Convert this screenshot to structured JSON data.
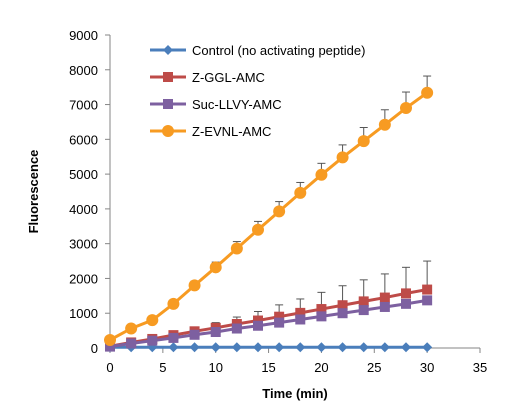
{
  "chart_data": {
    "type": "line",
    "title": "",
    "xlabel": "Time (min)",
    "ylabel": "Fluorescence",
    "xlim": [
      0,
      35
    ],
    "ylim": [
      0,
      9000
    ],
    "x_ticks": [
      0,
      5,
      10,
      15,
      20,
      25,
      30,
      35
    ],
    "y_ticks": [
      0,
      1000,
      2000,
      3000,
      4000,
      5000,
      6000,
      7000,
      8000,
      9000
    ],
    "grid": false,
    "legend_position": "top-left",
    "x": [
      0,
      2,
      4,
      6,
      8,
      10,
      12,
      14,
      16,
      18,
      20,
      22,
      24,
      26,
      28,
      30
    ],
    "series": [
      {
        "name": "Control (no activating peptide)",
        "color": "#4a7ebb",
        "marker": "diamond",
        "values": [
          20,
          20,
          20,
          20,
          20,
          20,
          20,
          20,
          20,
          20,
          20,
          20,
          20,
          20,
          20,
          20
        ],
        "errors": [
          0,
          0,
          0,
          0,
          0,
          0,
          0,
          0,
          0,
          0,
          0,
          0,
          0,
          0,
          0,
          0
        ]
      },
      {
        "name": "Z-GGL-AMC",
        "color": "#be4b48",
        "marker": "square",
        "values": [
          50,
          160,
          260,
          370,
          480,
          580,
          690,
          790,
          900,
          1010,
          1120,
          1230,
          1340,
          1450,
          1570,
          1680
        ],
        "errors": [
          10,
          40,
          60,
          90,
          110,
          150,
          200,
          260,
          340,
          400,
          480,
          560,
          620,
          680,
          750,
          820
        ]
      },
      {
        "name": "Suc-LLVY-AMC",
        "color": "#7d60a0",
        "marker": "square",
        "values": [
          40,
          130,
          210,
          290,
          380,
          460,
          560,
          640,
          730,
          820,
          910,
          1000,
          1090,
          1180,
          1270,
          1370
        ],
        "errors": [
          0,
          0,
          0,
          0,
          0,
          0,
          0,
          0,
          0,
          0,
          0,
          0,
          0,
          0,
          0,
          0
        ]
      },
      {
        "name": "Z-EVNL-AMC",
        "color": "#f79b22",
        "marker": "circle",
        "values": [
          230,
          560,
          800,
          1270,
          1800,
          2320,
          2860,
          3400,
          3930,
          4460,
          4980,
          5480,
          5950,
          6420,
          6900,
          7340
        ],
        "errors": [
          20,
          40,
          60,
          80,
          120,
          150,
          200,
          240,
          280,
          300,
          330,
          360,
          390,
          430,
          460,
          480
        ]
      }
    ]
  }
}
